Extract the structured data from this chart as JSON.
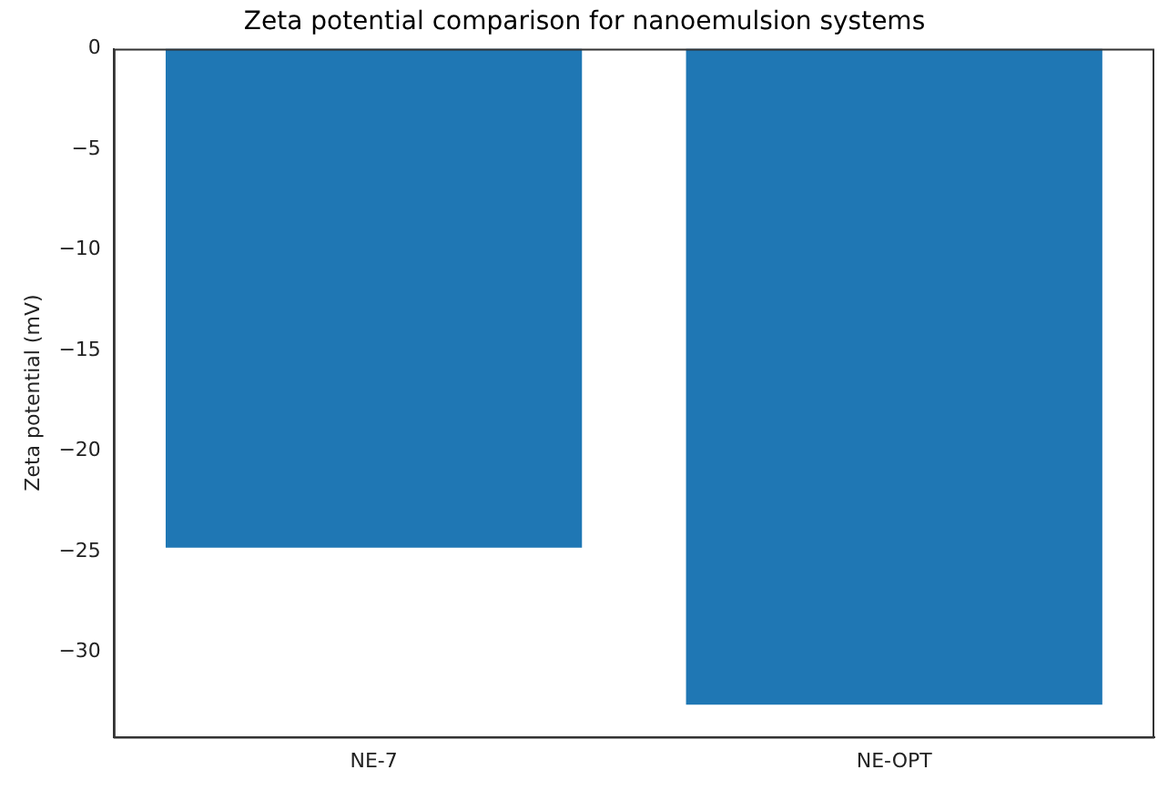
{
  "chart_data": {
    "type": "bar",
    "title": "Zeta potential comparison for nanoemulsion systems",
    "ylabel": "Zeta potential (mV)",
    "categories": [
      "NE-7",
      "NE-OPT"
    ],
    "values": [
      -24.8,
      -32.6
    ],
    "color": "#1f77b4",
    "ylim": [
      -34.2,
      0
    ],
    "yticks": [
      0,
      -5,
      -10,
      -15,
      -20,
      -25,
      -30
    ],
    "grid": false,
    "legend": false
  }
}
